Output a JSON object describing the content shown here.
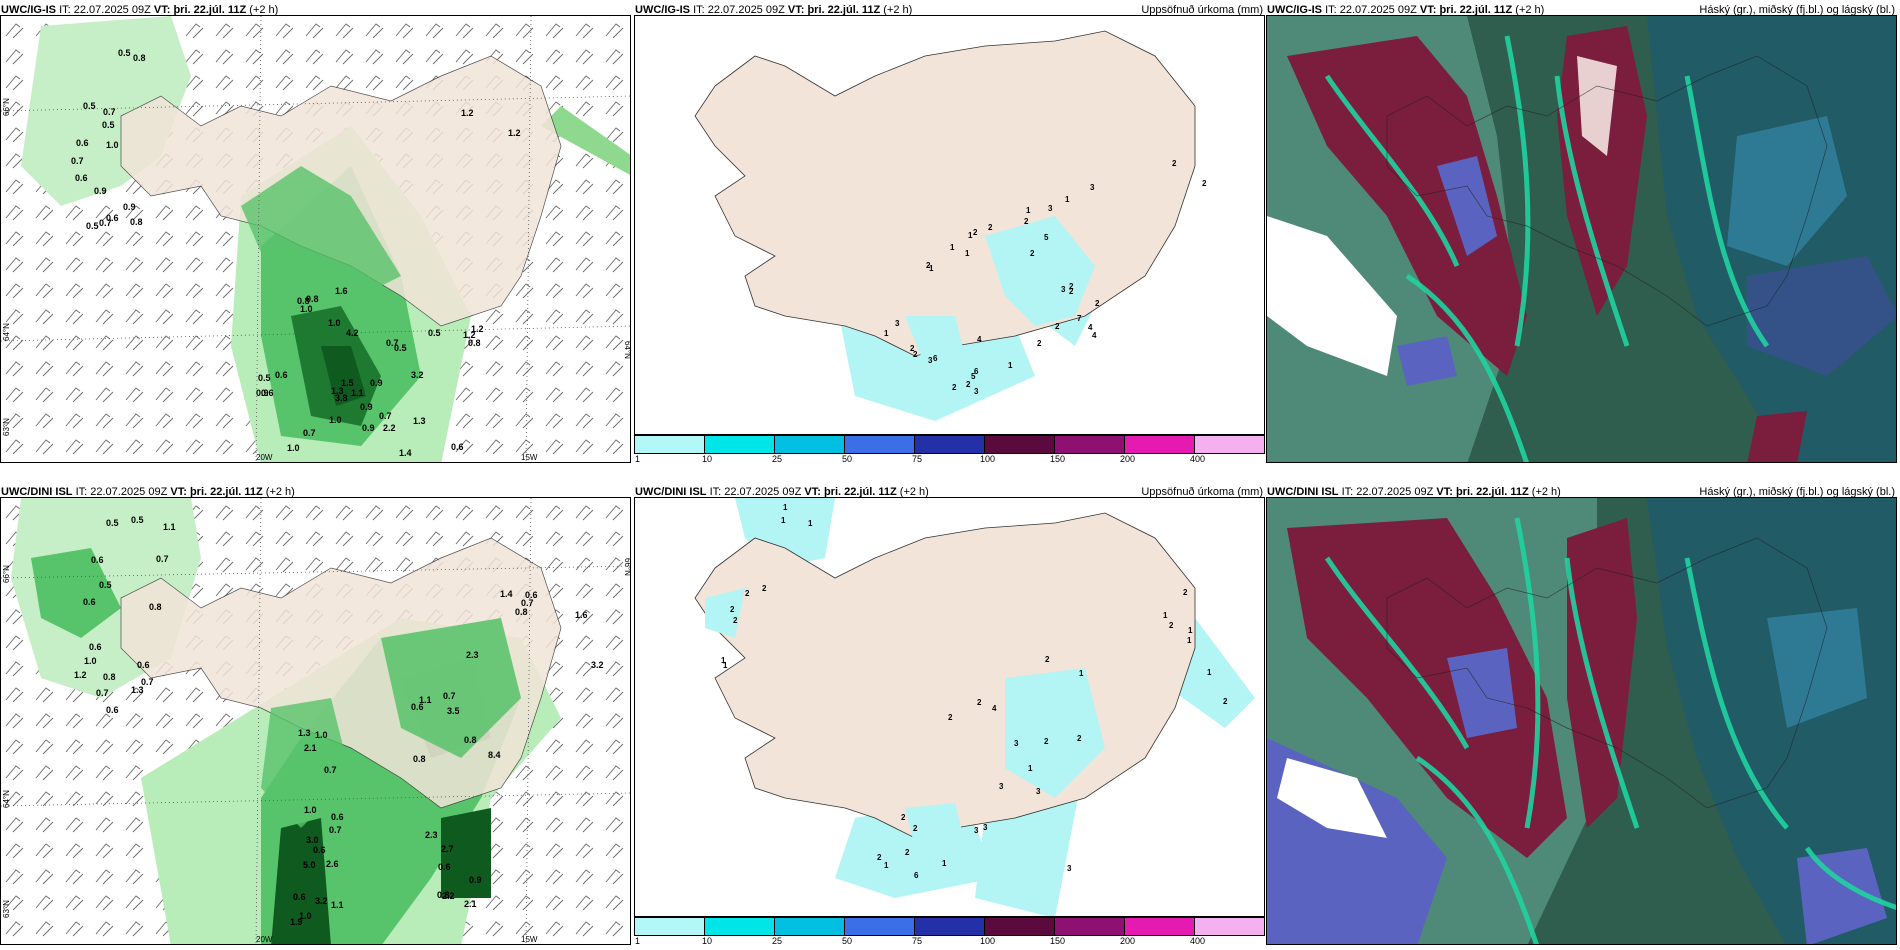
{
  "panels": [
    {
      "id": "p1",
      "model": "UWC/IG-IS",
      "it_label": "IT:",
      "it": "22.07.2025 09Z",
      "vt_label": "VT:",
      "vt": "þri. 22.júl. 11Z",
      "lead": "(+2 h)",
      "title": "",
      "axis_labels": {
        "lat1": "66°N",
        "lat2": "64°N",
        "lat3": "63°N",
        "lon1": "20W",
        "lon2": "15W",
        "right_lat": "64°N"
      },
      "values": [
        "0.5",
        "0.8",
        "0.5",
        "0.7",
        "1.0",
        "0.6",
        "0.6",
        "0.9",
        "0.7",
        "0.5",
        "0.8",
        "1.2",
        "1.2",
        "0.7",
        "0.5",
        "0.8",
        "0.9",
        "0.6",
        "0.8",
        "1.0",
        "1.5",
        "1.1",
        "1.0",
        "1.6",
        "0.7",
        "0.5",
        "0.5",
        "0.6",
        "1.0",
        "0.9",
        "1.3",
        "3.8",
        "4.2",
        "0.5",
        "0.6",
        "1.3",
        "0.9",
        "2.2",
        "0.7",
        "3.2",
        "1.0",
        "1.4",
        "0.9",
        "0.7",
        "0.9",
        "0.6",
        "0.8",
        "1.2",
        "1.2"
      ]
    },
    {
      "id": "p2",
      "model": "UWC/IG-IS",
      "it_label": "IT:",
      "it": "22.07.2025 09Z",
      "vt_label": "VT:",
      "vt": "þri. 22.júl. 11Z",
      "lead": "(+2 h)",
      "title": "Uppsöfnuð úrkoma (mm)",
      "values": [
        "2",
        "2",
        "1",
        "3",
        "1",
        "3",
        "2",
        "2",
        "2",
        "1",
        "1",
        "1",
        "1",
        "2",
        "5",
        "2",
        "3",
        "2",
        "2",
        "4",
        "7",
        "2",
        "4",
        "2",
        "2",
        "1",
        "2",
        "3",
        "6",
        "4",
        "5",
        "2",
        "6",
        "3",
        "2",
        "2",
        "3",
        "1"
      ]
    },
    {
      "id": "p3",
      "model": "UWC/IG-IS",
      "it_label": "IT:",
      "it": "22.07.2025 09Z",
      "vt_label": "VT:",
      "vt": "þri. 22.júl. 11Z",
      "lead": "(+2 h)",
      "title": "Háský (gr.), miðský (fj.bl.) og lágský (bl.)"
    },
    {
      "id": "p4",
      "model": "UWC/DINI ISL",
      "it_label": "IT:",
      "it": "22.07.2025 09Z",
      "vt_label": "VT:",
      "vt": "þri. 22.júl. 11Z",
      "lead": "(+2 h)",
      "title": "",
      "axis_labels": {
        "lat1": "66°N",
        "lat2": "64°N",
        "lat3": "63°N",
        "lon1": "20W",
        "lon2": "15W",
        "right_lat": "66°N"
      },
      "values": [
        "0.5",
        "0.5",
        "1.1",
        "0.6",
        "0.7",
        "0.5",
        "0.6",
        "0.8",
        "0.6",
        "1.0",
        "1.2",
        "0.8",
        "0.6",
        "1.3",
        "0.7",
        "0.7",
        "0.6",
        "1.4",
        "0.7",
        "0.8",
        "0.6",
        "1.6",
        "3.2",
        "2.3",
        "0.7",
        "0.8",
        "0.6",
        "1.1",
        "3.5",
        "8.4",
        "0.8",
        "1.0",
        "2.1",
        "1.3",
        "0.7",
        "1.0",
        "0.6",
        "0.7",
        "3.0",
        "0.6",
        "5.0",
        "0.6",
        "2.3",
        "0.6",
        "2.1",
        "0.8",
        "2.7",
        "2.2",
        "0.9",
        "2.6",
        "3.2",
        "1.0",
        "1.1",
        "1.9"
      ]
    },
    {
      "id": "p5",
      "model": "UWC/DINI ISL",
      "it_label": "IT:",
      "it": "22.07.2025 09Z",
      "vt_label": "VT:",
      "vt": "þri. 22.júl. 11Z",
      "lead": "(+2 h)",
      "title": "Uppsöfnuð úrkoma (mm)",
      "values": [
        "1",
        "1",
        "1",
        "2",
        "2",
        "2",
        "2",
        "1",
        "1",
        "4",
        "2",
        "1",
        "2",
        "1",
        "1",
        "1",
        "2",
        "2",
        "1",
        "2",
        "2",
        "4",
        "3",
        "2",
        "2",
        "1",
        "3",
        "3",
        "3",
        "3",
        "2",
        "2",
        "1",
        "2",
        "6",
        "3",
        "1",
        "2"
      ]
    },
    {
      "id": "p6",
      "model": "UWC/DINI ISL",
      "it_label": "IT:",
      "it": "22.07.2025 09Z",
      "vt_label": "VT:",
      "vt": "þri. 22.júl. 11Z",
      "lead": "(+2 h)",
      "title": "Háský (gr.), miðský (fj.bl.) og lágský (bl.)"
    }
  ],
  "colorbar": {
    "labels": [
      "1",
      "10",
      "25",
      "50",
      "75",
      "100",
      "150",
      "200",
      "400"
    ],
    "colors": [
      "#b3f8f8",
      "#00e5e8",
      "#00bfe0",
      "#3b6fe8",
      "#2430a8",
      "#5a0a3c",
      "#8e1070",
      "#e51ab0",
      "#f5b0ef"
    ]
  },
  "colors": {
    "land": "#f2e4d8",
    "coast": "#333333",
    "precip_light": "#b8ecb8",
    "precip_mid": "#57c36a",
    "precip_heavy": "#0f5a1e",
    "precip_cyan": "#b3f4f4",
    "cloud_dark": "#2f5d4e",
    "cloud_teal": "#1fd3a0",
    "cloud_maroon": "#7b1d3c",
    "cloud_blue": "#5a64c0",
    "cloud_white": "#ffffff"
  }
}
